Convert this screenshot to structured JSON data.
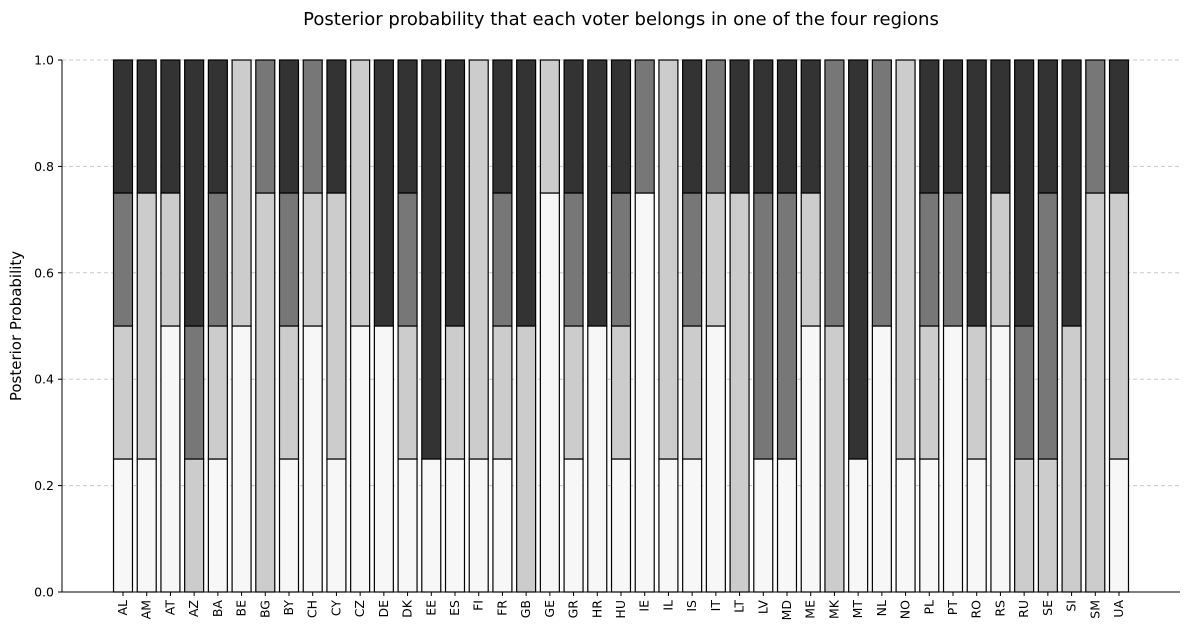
{
  "chart_data": {
    "type": "bar",
    "stacked": true,
    "title": "Posterior probability that each voter belongs in one of the four regions",
    "xlabel": "",
    "ylabel": "Posterior Probability",
    "ylim": [
      0,
      1.0
    ],
    "yticks": [
      "0.0",
      "0.2",
      "0.4",
      "0.6",
      "0.8",
      "1.0"
    ],
    "grid": "horizontal-dashed",
    "categories": [
      "AL",
      "AM",
      "AT",
      "AZ",
      "BA",
      "BE",
      "BG",
      "BY",
      "CH",
      "CY",
      "CZ",
      "DE",
      "DK",
      "EE",
      "ES",
      "FI",
      "FR",
      "GB",
      "GE",
      "GR",
      "HR",
      "HU",
      "IE",
      "IL",
      "IS",
      "IT",
      "LT",
      "LV",
      "MD",
      "ME",
      "MK",
      "MT",
      "NL",
      "NO",
      "PL",
      "PT",
      "RO",
      "RS",
      "RU",
      "SE",
      "SI",
      "SM",
      "UA"
    ],
    "series": [
      {
        "color": "#f7f7f7",
        "values": [
          0.25,
          0.25,
          0.5,
          0,
          0.25,
          0.5,
          0,
          0.25,
          0.5,
          0.25,
          0.5,
          0.5,
          0.25,
          0.25,
          0.25,
          0.25,
          0.25,
          0,
          0.75,
          0.25,
          0.5,
          0.25,
          0.75,
          0.25,
          0.25,
          0.5,
          0,
          0.25,
          0.25,
          0.5,
          0,
          0.25,
          0.5,
          0.25,
          0.25,
          0.5,
          0.25,
          0.5,
          0,
          0,
          0,
          0,
          0.25
        ]
      },
      {
        "color": "#cccccc",
        "values": [
          0.25,
          0.5,
          0.25,
          0.25,
          0.25,
          0.5,
          0.75,
          0.25,
          0.25,
          0.5,
          0.5,
          0,
          0.25,
          0,
          0.25,
          0.75,
          0.25,
          0.5,
          0.25,
          0.25,
          0,
          0.25,
          0,
          0.75,
          0.25,
          0.25,
          0.75,
          0,
          0,
          0.25,
          0.5,
          0,
          0,
          0.75,
          0.25,
          0,
          0.25,
          0.25,
          0.25,
          0.25,
          0.5,
          0.75,
          0.5
        ]
      },
      {
        "color": "#777777",
        "values": [
          0.25,
          0,
          0,
          0.25,
          0.25,
          0,
          0.25,
          0.25,
          0.25,
          0,
          0,
          0,
          0.25,
          0,
          0,
          0,
          0.25,
          0,
          0,
          0.25,
          0,
          0.25,
          0.25,
          0,
          0.25,
          0.25,
          0,
          0.5,
          0.5,
          0,
          0.5,
          0,
          0.5,
          0,
          0.25,
          0.25,
          0,
          0,
          0.25,
          0.5,
          0,
          0.25,
          0
        ]
      },
      {
        "color": "#333333",
        "values": [
          0.25,
          0.25,
          0.25,
          0.5,
          0.25,
          0,
          0,
          0.25,
          0,
          0.25,
          0,
          0.5,
          0.25,
          0.75,
          0.5,
          0,
          0.25,
          0.5,
          0,
          0.25,
          0.5,
          0.25,
          0,
          0,
          0.25,
          0,
          0.25,
          0.25,
          0.25,
          0.25,
          0,
          0.75,
          0,
          0,
          0.25,
          0.25,
          0.5,
          0.25,
          0.5,
          0.25,
          0.5,
          0,
          0.25
        ]
      }
    ]
  }
}
